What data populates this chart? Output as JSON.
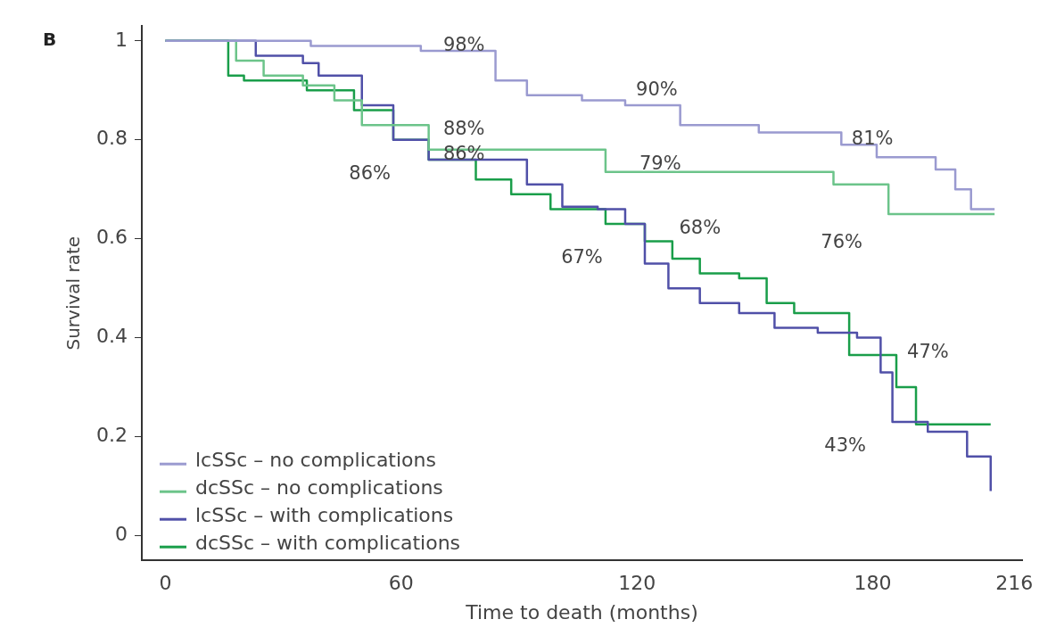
{
  "chart_data": {
    "type": "step",
    "title": "B",
    "xlabel": "Time to death (months)",
    "ylabel": "Survival rate",
    "xlim": [
      -6,
      218
    ],
    "xticks": [
      0,
      60,
      120,
      180,
      216
    ],
    "ylim": [
      -0.05,
      1.03
    ],
    "yticks": [
      0,
      0.2,
      0.4,
      0.6,
      0.8,
      1
    ],
    "grid": false,
    "legend": "bottom left",
    "series": [
      {
        "name": "lcSSc – no complications",
        "color": "#9a9ad0",
        "x": [
          0,
          37,
          65,
          84,
          92,
          106,
          117,
          131,
          151,
          172,
          181,
          196,
          201,
          205,
          211
        ],
        "values": [
          1,
          0.99,
          0.98,
          0.92,
          0.89,
          0.88,
          0.87,
          0.83,
          0.815,
          0.79,
          0.765,
          0.74,
          0.7,
          0.66,
          0.66
        ]
      },
      {
        "name": "dcSSc – no complications",
        "color": "#6cc48a",
        "x": [
          0,
          18,
          25,
          35,
          43,
          50,
          67,
          112,
          170,
          184,
          211
        ],
        "values": [
          1,
          0.96,
          0.93,
          0.91,
          0.88,
          0.83,
          0.78,
          0.735,
          0.71,
          0.65,
          0.65
        ]
      },
      {
        "name": "lcSSc – with complications",
        "color": "#5050a8",
        "x": [
          0,
          23,
          35,
          39,
          50,
          58,
          67,
          92,
          101,
          110,
          117,
          122,
          128,
          136,
          146,
          155,
          166,
          176,
          182,
          185,
          194,
          204,
          210
        ],
        "values": [
          1,
          0.97,
          0.955,
          0.93,
          0.87,
          0.8,
          0.76,
          0.71,
          0.665,
          0.66,
          0.63,
          0.55,
          0.5,
          0.47,
          0.45,
          0.42,
          0.41,
          0.4,
          0.33,
          0.23,
          0.21,
          0.16,
          0.09
        ]
      },
      {
        "name": "dcSSc – with complications",
        "color": "#1a9e4a",
        "x": [
          0,
          16,
          20,
          36,
          48,
          58,
          67,
          79,
          88,
          98,
          112,
          122,
          129,
          136,
          146,
          153,
          160,
          166,
          174,
          186,
          191,
          210
        ],
        "values": [
          1,
          0.93,
          0.92,
          0.9,
          0.86,
          0.8,
          0.76,
          0.72,
          0.69,
          0.66,
          0.63,
          0.595,
          0.56,
          0.53,
          0.52,
          0.47,
          0.45,
          0.45,
          0.365,
          0.3,
          0.225,
          0.225
        ]
      }
    ],
    "annotations": [
      "98%",
      "88%",
      "86%",
      "86%",
      "90%",
      "79%",
      "68%",
      "67%",
      "81%",
      "76%",
      "47%",
      "43%"
    ]
  }
}
